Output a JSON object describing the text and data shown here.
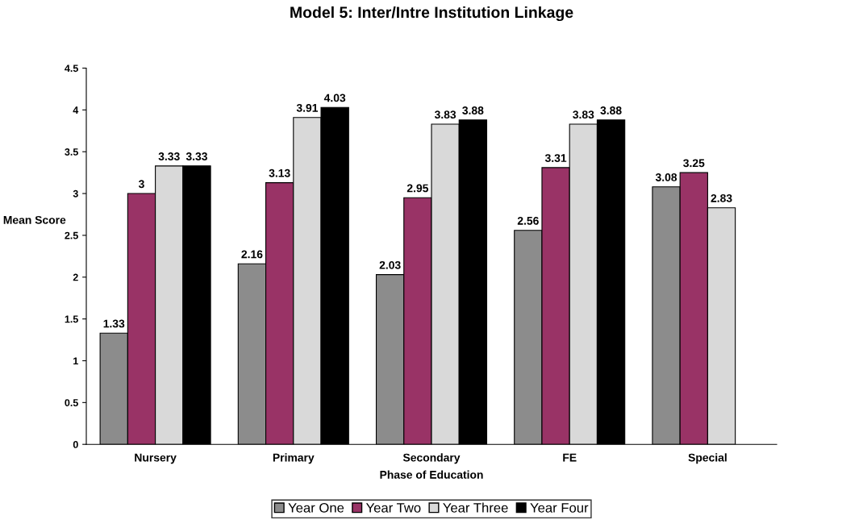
{
  "chart_data": {
    "type": "bar",
    "title": "Model 5: Inter/Intre Institution Linkage",
    "xlabel": "Phase of Education",
    "ylabel": "Mean Score",
    "categories": [
      "Nursery",
      "Primary",
      "Secondary",
      "FE",
      "Special"
    ],
    "series": [
      {
        "name": "Year One",
        "color": "#8c8c8c",
        "values": [
          1.33,
          2.16,
          2.03,
          2.56,
          3.08
        ]
      },
      {
        "name": "Year Two",
        "color": "#993366",
        "values": [
          3,
          3.13,
          2.95,
          3.31,
          3.25
        ]
      },
      {
        "name": "Year Three",
        "color": "#d9d9d9",
        "values": [
          3.33,
          3.91,
          3.83,
          3.83,
          2.83
        ]
      },
      {
        "name": "Year Four",
        "color": "#000000",
        "values": [
          3.33,
          4.03,
          3.88,
          3.88,
          null
        ]
      }
    ],
    "ylim": [
      0,
      4.5
    ],
    "yticks": [
      0,
      0.5,
      1,
      1.5,
      2,
      2.5,
      3,
      3.5,
      4,
      4.5
    ],
    "data_labels": true,
    "grid": false,
    "legend": "bottom"
  }
}
